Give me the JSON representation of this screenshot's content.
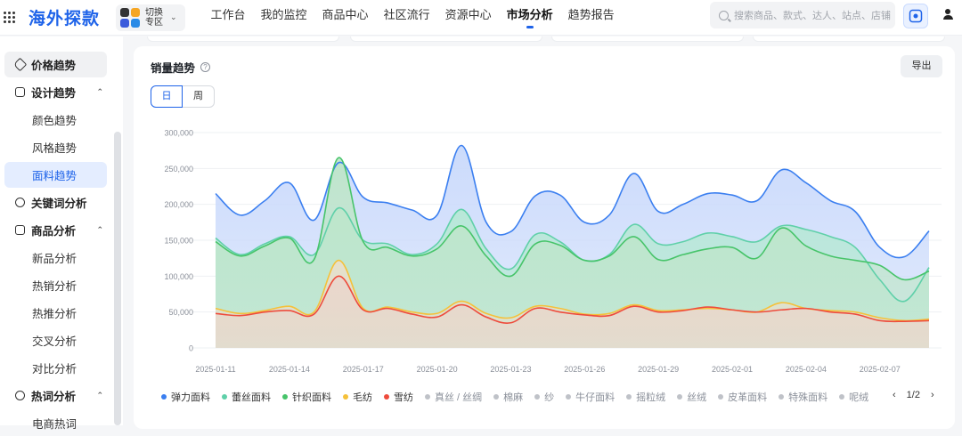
{
  "app": {
    "logo": "海外探款"
  },
  "region": {
    "line1": "切换",
    "line2": "专区"
  },
  "nav": [
    "工作台",
    "我的监控",
    "商品中心",
    "社区流行",
    "资源中心",
    "市场分析",
    "趋势报告"
  ],
  "nav_active_index": 5,
  "search": {
    "placeholder": "搜索商品、款式、达人、站点、店铺"
  },
  "sidebar": {
    "items": [
      {
        "label": "价格趋势",
        "kind": "group",
        "icon": "tag-icon"
      },
      {
        "label": "设计趋势",
        "kind": "group",
        "icon": "design-icon",
        "expanded": true
      },
      {
        "label": "颜色趋势",
        "kind": "sub"
      },
      {
        "label": "风格趋势",
        "kind": "sub"
      },
      {
        "label": "面料趋势",
        "kind": "sub",
        "selected": true
      },
      {
        "label": "关键词分析",
        "kind": "group",
        "icon": "keyword-icon"
      },
      {
        "label": "商品分析",
        "kind": "group",
        "icon": "product-icon",
        "expanded": true
      },
      {
        "label": "新品分析",
        "kind": "sub"
      },
      {
        "label": "热销分析",
        "kind": "sub"
      },
      {
        "label": "热推分析",
        "kind": "sub"
      },
      {
        "label": "交叉分析",
        "kind": "sub"
      },
      {
        "label": "对比分析",
        "kind": "sub"
      },
      {
        "label": "热词分析",
        "kind": "group",
        "icon": "hotword-icon",
        "expanded": true
      },
      {
        "label": "电商热词",
        "kind": "sub"
      }
    ]
  },
  "panel": {
    "title": "销量趋势",
    "export_label": "导出",
    "granularity": [
      "日",
      "周"
    ],
    "granularity_selected": "日"
  },
  "legend": {
    "pager": "1/2",
    "items": [
      {
        "name": "弹力面料",
        "color": "#3b7ff0",
        "active": true
      },
      {
        "name": "蕾丝面料",
        "color": "#5fd0a9",
        "active": true
      },
      {
        "name": "针织面料",
        "color": "#47c46a",
        "active": true
      },
      {
        "name": "毛纺",
        "color": "#f5c13a",
        "active": true
      },
      {
        "name": "雪纺",
        "color": "#ee4b3c",
        "active": true
      },
      {
        "name": "真丝 / 丝绸",
        "color": "#bfc2c8",
        "active": false
      },
      {
        "name": "棉麻",
        "color": "#bfc2c8",
        "active": false
      },
      {
        "name": "纱",
        "color": "#bfc2c8",
        "active": false
      },
      {
        "name": "牛仔面料",
        "color": "#bfc2c8",
        "active": false
      },
      {
        "name": "摇粒绒",
        "color": "#bfc2c8",
        "active": false
      },
      {
        "name": "丝绒",
        "color": "#bfc2c8",
        "active": false
      },
      {
        "name": "皮革面料",
        "color": "#bfc2c8",
        "active": false
      },
      {
        "name": "特殊面料",
        "color": "#bfc2c8",
        "active": false
      },
      {
        "name": "呢绒",
        "color": "#bfc2c8",
        "active": false
      }
    ]
  },
  "chart_data": {
    "type": "area",
    "x_start": "2025-01-11",
    "x_tick_labels": [
      "2025-01-11",
      "2025-01-14",
      "2025-01-17",
      "2025-01-20",
      "2025-01-23",
      "2025-01-26",
      "2025-01-29",
      "2025-02-01",
      "2025-02-04",
      "2025-02-07"
    ],
    "y_ticks": [
      0,
      50000,
      100000,
      150000,
      200000,
      250000,
      300000
    ],
    "y_tick_labels": [
      "0",
      "50,000",
      "100,000",
      "150,000",
      "200,000",
      "250,000",
      "300,000"
    ],
    "ylim": [
      0,
      300000
    ],
    "grid": true,
    "series": [
      {
        "name": "弹力面料",
        "color": "#3b7ff0",
        "values": [
          215000,
          185000,
          205000,
          230000,
          178000,
          258000,
          210000,
          202000,
          192000,
          185000,
          282000,
          175000,
          162000,
          212000,
          213000,
          175000,
          185000,
          243000,
          190000,
          200000,
          215000,
          213000,
          205000,
          248000,
          230000,
          205000,
          190000,
          140000,
          127000,
          163000
        ]
      },
      {
        "name": "蕾丝面料",
        "color": "#5fd0a9",
        "values": [
          153000,
          130000,
          145000,
          155000,
          130000,
          195000,
          150000,
          145000,
          130000,
          145000,
          193000,
          138000,
          110000,
          158000,
          148000,
          122000,
          130000,
          172000,
          145000,
          148000,
          160000,
          155000,
          148000,
          170000,
          165000,
          155000,
          140000,
          95000,
          65000,
          112000
        ]
      },
      {
        "name": "针织面料",
        "color": "#47c46a",
        "values": [
          148000,
          128000,
          142000,
          153000,
          123000,
          265000,
          148000,
          140000,
          128000,
          138000,
          170000,
          128000,
          100000,
          145000,
          143000,
          122000,
          128000,
          155000,
          123000,
          130000,
          138000,
          140000,
          125000,
          167000,
          142000,
          128000,
          122000,
          115000,
          95000,
          107000
        ]
      },
      {
        "name": "毛纺",
        "color": "#f5c13a",
        "values": [
          55000,
          48000,
          52000,
          58000,
          50000,
          122000,
          55000,
          57000,
          50000,
          48000,
          65000,
          48000,
          42000,
          58000,
          55000,
          47000,
          48000,
          60000,
          52000,
          53000,
          55000,
          53000,
          50000,
          63000,
          55000,
          52000,
          50000,
          42000,
          38000,
          40000
        ]
      },
      {
        "name": "雪纺",
        "color": "#ee4b3c",
        "values": [
          48000,
          45000,
          50000,
          52000,
          47000,
          100000,
          53000,
          55000,
          47000,
          43000,
          60000,
          43000,
          35000,
          55000,
          50000,
          46000,
          45000,
          58000,
          50000,
          52000,
          57000,
          53000,
          50000,
          53000,
          55000,
          50000,
          47000,
          38000,
          37000,
          38000
        ]
      }
    ]
  }
}
